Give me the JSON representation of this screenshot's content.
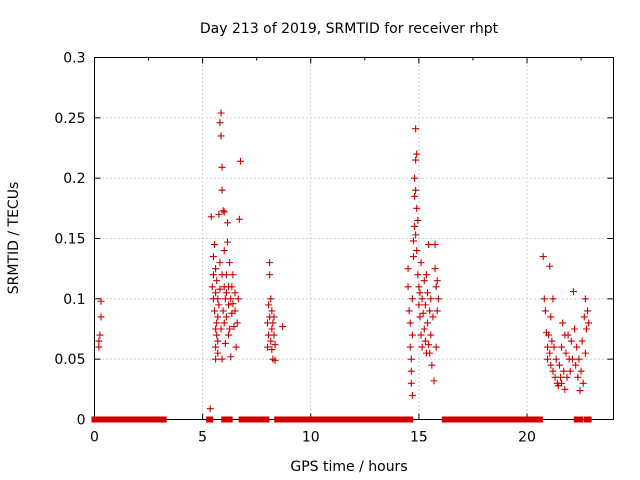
{
  "chart_data": {
    "type": "scatter",
    "title": "Day 213 of 2019, SRMTID for receiver rhpt",
    "xlabel": "GPS time / hours",
    "ylabel": "SRMTID / TECUs",
    "xlim": [
      0,
      24
    ],
    "ylim": [
      0,
      0.3
    ],
    "xticks": [
      0,
      5,
      10,
      15,
      20
    ],
    "xtick_labels": [
      "0",
      "5",
      "10",
      "15",
      "20"
    ],
    "yticks": [
      0,
      0.05,
      0.1,
      0.15,
      0.2,
      0.25,
      0.3
    ],
    "ytick_labels": [
      "0",
      "0.05",
      "0.1",
      "0.15",
      "0.2",
      "0.25",
      "0.3"
    ],
    "grid": true,
    "marker": "plus",
    "color": "#cc0000",
    "zero_segments": [
      [
        0.0,
        3.2
      ],
      [
        5.3,
        5.35
      ],
      [
        6.0,
        6.25
      ],
      [
        6.8,
        7.95
      ],
      [
        8.45,
        14.6
      ],
      [
        16.2,
        20.6
      ],
      [
        22.3,
        22.45
      ],
      [
        22.75,
        22.85
      ]
    ],
    "series": [
      {
        "name": "SRMTID",
        "points": [
          [
            0.2,
            0.06
          ],
          [
            0.2,
            0.065
          ],
          [
            0.25,
            0.07
          ],
          [
            0.3,
            0.085
          ],
          [
            0.3,
            0.098
          ],
          [
            5.35,
            0.009
          ],
          [
            5.4,
            0.168
          ],
          [
            5.45,
            0.11
          ],
          [
            5.5,
            0.1
          ],
          [
            5.5,
            0.12
          ],
          [
            5.5,
            0.135
          ],
          [
            5.55,
            0.145
          ],
          [
            5.55,
            0.09
          ],
          [
            5.6,
            0.105
          ],
          [
            5.6,
            0.125
          ],
          [
            5.6,
            0.075
          ],
          [
            5.6,
            0.06
          ],
          [
            5.6,
            0.05
          ],
          [
            5.65,
            0.115
          ],
          [
            5.65,
            0.07
          ],
          [
            5.65,
            0.08
          ],
          [
            5.7,
            0.1
          ],
          [
            5.7,
            0.065
          ],
          [
            5.7,
            0.055
          ],
          [
            5.7,
            0.085
          ],
          [
            5.75,
            0.17
          ],
          [
            5.75,
            0.095
          ],
          [
            5.8,
            0.246
          ],
          [
            5.8,
            0.108
          ],
          [
            5.8,
            0.13
          ],
          [
            5.85,
            0.254
          ],
          [
            5.85,
            0.235
          ],
          [
            5.85,
            0.075
          ],
          [
            5.9,
            0.209
          ],
          [
            5.9,
            0.19
          ],
          [
            5.9,
            0.12
          ],
          [
            5.9,
            0.05
          ],
          [
            5.95,
            0.173
          ],
          [
            5.95,
            0.09
          ],
          [
            6.0,
            0.172
          ],
          [
            6.0,
            0.14
          ],
          [
            6.0,
            0.11
          ],
          [
            6.0,
            0.08
          ],
          [
            6.05,
            0.1
          ],
          [
            6.05,
            0.063
          ],
          [
            6.1,
            0.12
          ],
          [
            6.1,
            0.105
          ],
          [
            6.1,
            0.085
          ],
          [
            6.15,
            0.147
          ],
          [
            6.15,
            0.163
          ],
          [
            6.2,
            0.11
          ],
          [
            6.2,
            0.095
          ],
          [
            6.2,
            0.07
          ],
          [
            6.25,
            0.13
          ],
          [
            6.25,
            0.075
          ],
          [
            6.3,
            0.1
          ],
          [
            6.3,
            0.052
          ],
          [
            6.35,
            0.088
          ],
          [
            6.35,
            0.11
          ],
          [
            6.4,
            0.12
          ],
          [
            6.4,
            0.096
          ],
          [
            6.45,
            0.077
          ],
          [
            6.5,
            0.105
          ],
          [
            6.5,
            0.09
          ],
          [
            6.55,
            0.06
          ],
          [
            6.6,
            0.08
          ],
          [
            6.65,
            0.1
          ],
          [
            6.7,
            0.166
          ],
          [
            6.75,
            0.214
          ],
          [
            8.0,
            0.08
          ],
          [
            8.0,
            0.06
          ],
          [
            8.05,
            0.095
          ],
          [
            8.05,
            0.07
          ],
          [
            8.1,
            0.13
          ],
          [
            8.1,
            0.12
          ],
          [
            8.1,
            0.085
          ],
          [
            8.15,
            0.1
          ],
          [
            8.15,
            0.065
          ],
          [
            8.2,
            0.09
          ],
          [
            8.2,
            0.075
          ],
          [
            8.2,
            0.058
          ],
          [
            8.25,
            0.08
          ],
          [
            8.25,
            0.05
          ],
          [
            8.3,
            0.07
          ],
          [
            8.3,
            0.085
          ],
          [
            8.35,
            0.062
          ],
          [
            8.35,
            0.049
          ],
          [
            8.7,
            0.077
          ],
          [
            14.5,
            0.11
          ],
          [
            14.5,
            0.125
          ],
          [
            14.55,
            0.09
          ],
          [
            14.6,
            0.08
          ],
          [
            14.6,
            0.06
          ],
          [
            14.65,
            0.05
          ],
          [
            14.65,
            0.04
          ],
          [
            14.65,
            0.03
          ],
          [
            14.7,
            0.02
          ],
          [
            14.7,
            0.07
          ],
          [
            14.7,
            0.1
          ],
          [
            14.75,
            0.135
          ],
          [
            14.75,
            0.148
          ],
          [
            14.8,
            0.2
          ],
          [
            14.8,
            0.185
          ],
          [
            14.8,
            0.16
          ],
          [
            14.85,
            0.241
          ],
          [
            14.85,
            0.215
          ],
          [
            14.85,
            0.19
          ],
          [
            14.85,
            0.153
          ],
          [
            14.9,
            0.22
          ],
          [
            14.9,
            0.175
          ],
          [
            14.9,
            0.14
          ],
          [
            14.95,
            0.165
          ],
          [
            14.95,
            0.12
          ],
          [
            15.0,
            0.11
          ],
          [
            15.0,
            0.095
          ],
          [
            15.05,
            0.105
          ],
          [
            15.05,
            0.085
          ],
          [
            15.1,
            0.13
          ],
          [
            15.1,
            0.07
          ],
          [
            15.15,
            0.1
          ],
          [
            15.15,
            0.06
          ],
          [
            15.2,
            0.088
          ],
          [
            15.25,
            0.115
          ],
          [
            15.25,
            0.075
          ],
          [
            15.3,
            0.095
          ],
          [
            15.3,
            0.065
          ],
          [
            15.35,
            0.055
          ],
          [
            15.35,
            0.12
          ],
          [
            15.4,
            0.105
          ],
          [
            15.4,
            0.08
          ],
          [
            15.45,
            0.145
          ],
          [
            15.45,
            0.062
          ],
          [
            15.5,
            0.09
          ],
          [
            15.5,
            0.055
          ],
          [
            15.55,
            0.1
          ],
          [
            15.55,
            0.07
          ],
          [
            15.6,
            0.045
          ],
          [
            15.65,
            0.085
          ],
          [
            15.7,
            0.032
          ],
          [
            15.75,
            0.125
          ],
          [
            15.75,
            0.145
          ],
          [
            15.8,
            0.11
          ],
          [
            15.8,
            0.06
          ],
          [
            15.85,
            0.115
          ],
          [
            15.85,
            0.09
          ],
          [
            15.9,
            0.1
          ],
          [
            20.75,
            0.135
          ],
          [
            20.8,
            0.1
          ],
          [
            20.85,
            0.09
          ],
          [
            20.9,
            0.072
          ],
          [
            20.95,
            0.06
          ],
          [
            20.95,
            0.05
          ],
          [
            21.0,
            0.07
          ],
          [
            21.05,
            0.127
          ],
          [
            21.05,
            0.055
          ],
          [
            21.1,
            0.085
          ],
          [
            21.1,
            0.045
          ],
          [
            21.15,
            0.065
          ],
          [
            21.2,
            0.1
          ],
          [
            21.2,
            0.04
          ],
          [
            21.25,
            0.06
          ],
          [
            21.3,
            0.035
          ],
          [
            21.35,
            0.05
          ],
          [
            21.4,
            0.03
          ],
          [
            21.45,
            0.028
          ],
          [
            21.5,
            0.045
          ],
          [
            21.55,
            0.035
          ],
          [
            21.6,
            0.06
          ],
          [
            21.6,
            0.03
          ],
          [
            21.65,
            0.08
          ],
          [
            21.7,
            0.04
          ],
          [
            21.75,
            0.07
          ],
          [
            21.75,
            0.025
          ],
          [
            21.8,
            0.055
          ],
          [
            21.85,
            0.035
          ],
          [
            21.9,
            0.07
          ],
          [
            21.95,
            0.05
          ],
          [
            22.0,
            0.04
          ],
          [
            22.05,
            0.065
          ],
          [
            22.1,
            0.05
          ],
          [
            22.15,
            0.106
          ],
          [
            22.2,
            0.075
          ],
          [
            22.25,
            0.045
          ],
          [
            22.3,
            0.06
          ],
          [
            22.35,
            0.035
          ],
          [
            22.4,
            0.05
          ],
          [
            22.45,
            0.024
          ],
          [
            22.5,
            0.04
          ],
          [
            22.55,
            0.065
          ],
          [
            22.6,
            0.03
          ],
          [
            22.65,
            0.085
          ],
          [
            22.7,
            0.1
          ],
          [
            22.7,
            0.055
          ],
          [
            22.75,
            0.075
          ],
          [
            22.8,
            0.09
          ],
          [
            22.85,
            0.08
          ]
        ]
      }
    ]
  }
}
